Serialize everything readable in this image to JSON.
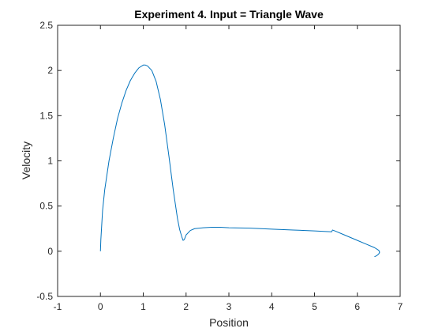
{
  "chart_data": {
    "type": "line",
    "title": "Experiment 4. Input = Triangle Wave",
    "xlabel": "Position",
    "ylabel": "Velocity",
    "xlim": [
      -1,
      7
    ],
    "ylim": [
      -0.5,
      2.5
    ],
    "x_ticks": [
      -1,
      0,
      1,
      2,
      3,
      4,
      5,
      6,
      7
    ],
    "x_tick_labels": [
      "-1",
      "0",
      "1",
      "2",
      "3",
      "4",
      "5",
      "6",
      "7"
    ],
    "y_ticks": [
      -0.5,
      0,
      0.5,
      1,
      1.5,
      2,
      2.5
    ],
    "y_tick_labels": [
      "-0.5",
      "0",
      "0.5",
      "1",
      "1.5",
      "2",
      "2.5"
    ],
    "grid": false,
    "box": true,
    "colors": {
      "line": "#0072bd",
      "axis": "#262626",
      "background": "#ffffff"
    },
    "series": [
      {
        "x": [
          0,
          0.01,
          0.05,
          0.1,
          0.2,
          0.3,
          0.4,
          0.5,
          0.6,
          0.7,
          0.8,
          0.9,
          1.0,
          1.05,
          1.1,
          1.2,
          1.3,
          1.4,
          1.5,
          1.6,
          1.7,
          1.8,
          1.85,
          1.9,
          1.93,
          1.96,
          2.0,
          2.1,
          2.2,
          2.4,
          2.6,
          2.8,
          3.0,
          3.5,
          4.0,
          4.5,
          5.0,
          5.4,
          5.42,
          5.5,
          5.7,
          6.0,
          6.2,
          6.4,
          6.5,
          6.52,
          6.5,
          6.45,
          6.4
        ],
        "y": [
          0,
          0.13,
          0.45,
          0.68,
          1.0,
          1.25,
          1.47,
          1.64,
          1.78,
          1.89,
          1.97,
          2.03,
          2.06,
          2.06,
          2.05,
          2.0,
          1.88,
          1.68,
          1.4,
          1.05,
          0.68,
          0.36,
          0.24,
          0.16,
          0.12,
          0.13,
          0.18,
          0.23,
          0.25,
          0.26,
          0.265,
          0.265,
          0.26,
          0.255,
          0.245,
          0.235,
          0.225,
          0.215,
          0.235,
          0.22,
          0.18,
          0.12,
          0.08,
          0.04,
          0.01,
          -0.01,
          -0.03,
          -0.05,
          -0.06
        ]
      }
    ]
  }
}
